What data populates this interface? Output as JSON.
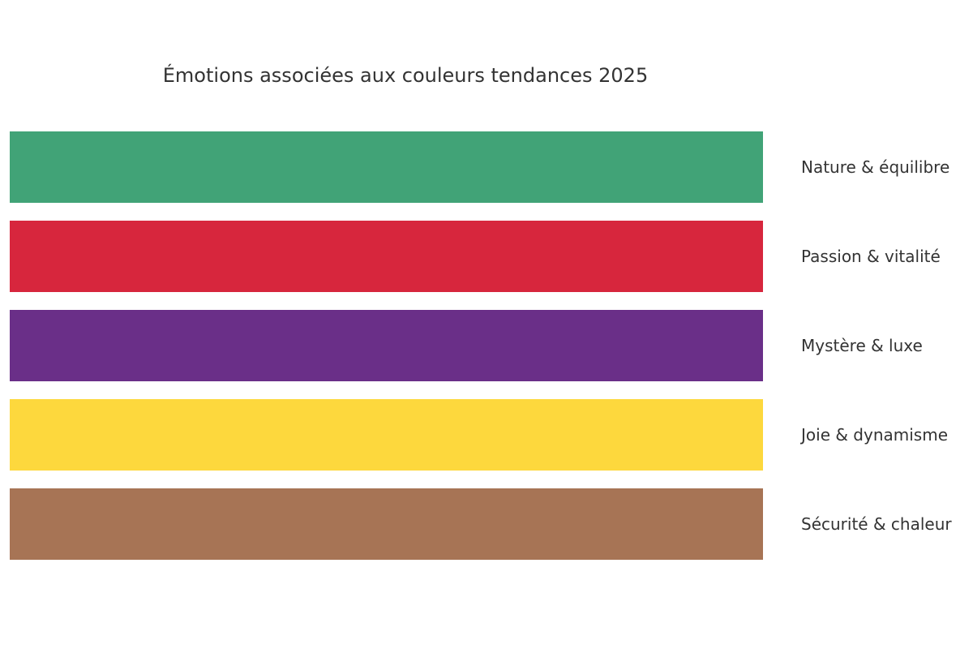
{
  "chart_data": {
    "type": "bar",
    "orientation": "horizontal",
    "title": "Émotions associées aux couleurs tendances 2025",
    "xlabel": "",
    "ylabel": "",
    "grid": false,
    "legend": "none",
    "categories": [
      "Nature & équilibre",
      "Passion & vitalité",
      "Mystère & luxe",
      "Joie & dynamisme",
      "Sécurité & chaleur"
    ],
    "values": [
      1,
      1,
      1,
      1,
      1
    ],
    "colors": [
      "#41a377",
      "#d7263d",
      "#6a2f88",
      "#fdd83d",
      "#a77455"
    ],
    "xlim": [
      0,
      1
    ]
  }
}
